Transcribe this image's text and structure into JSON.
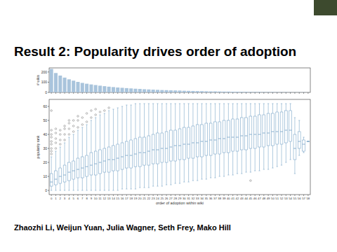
{
  "slide": {
    "title": "Result 2: Popularity drives order of adoption",
    "authors": "Zhaozhi Li, Weijun Yuan, Julia Wagner, Seth Frey, Mako Hill"
  },
  "chart_data": [
    {
      "type": "bar",
      "y_label": "# wikis",
      "color": "#a9c4dc",
      "tick_labels": "y",
      "categories": [
        "0",
        "1",
        "2",
        "3",
        "4",
        "5",
        "6",
        "7",
        "8",
        "9",
        "10",
        "11",
        "12",
        "13",
        "14",
        "15",
        "16",
        "17",
        "18",
        "19",
        "20",
        "21",
        "22",
        "23",
        "24",
        "25",
        "26",
        "27",
        "28",
        "29",
        "30",
        "31",
        "32",
        "33",
        "34",
        "35",
        "36",
        "37",
        "38",
        "39",
        "40",
        "41",
        "42",
        "43",
        "44",
        "45",
        "46",
        "47",
        "48",
        "49",
        "50",
        "51",
        "52",
        "53",
        "54",
        "55",
        "56",
        "57",
        "58"
      ],
      "values": [
        230,
        190,
        165,
        145,
        128,
        115,
        103,
        93,
        85,
        78,
        72,
        66,
        61,
        56,
        52,
        48,
        45,
        42,
        39,
        36,
        34,
        31,
        29,
        27,
        25,
        23,
        22,
        20,
        19,
        18,
        16,
        15,
        14,
        13,
        12,
        11,
        10,
        10,
        9,
        8,
        8,
        7,
        7,
        6,
        6,
        5,
        5,
        5,
        4,
        4,
        4,
        3,
        3,
        3,
        2,
        2,
        2,
        2,
        1
      ],
      "ylim": [
        0,
        240
      ],
      "yticks": [
        0,
        100,
        200
      ]
    },
    {
      "type": "box",
      "x_label": "order of adoption within wiki",
      "y_label": "popularity rank",
      "color": "#7aa6c8",
      "categories": [
        "0",
        "1",
        "2",
        "3",
        "4",
        "5",
        "6",
        "7",
        "8",
        "9",
        "10",
        "11",
        "12",
        "13",
        "14",
        "15",
        "16",
        "17",
        "18",
        "19",
        "20",
        "21",
        "22",
        "23",
        "24",
        "25",
        "26",
        "27",
        "28",
        "29",
        "30",
        "31",
        "32",
        "33",
        "34",
        "35",
        "36",
        "37",
        "38",
        "39",
        "40",
        "41",
        "42",
        "43",
        "44",
        "45",
        "46",
        "47",
        "48",
        "49",
        "50",
        "51",
        "52",
        "53",
        "54",
        "55",
        "56",
        "57",
        "58"
      ],
      "whisker_low": [
        0,
        0,
        0,
        0,
        0,
        0,
        0,
        0,
        0,
        0,
        0,
        0,
        0,
        0,
        0,
        0,
        1,
        1,
        1,
        1,
        2,
        2,
        2,
        3,
        3,
        3,
        4,
        4,
        5,
        5,
        6,
        6,
        7,
        7,
        8,
        8,
        9,
        9,
        10,
        10,
        11,
        11,
        12,
        12,
        13,
        13,
        14,
        14,
        15,
        15,
        16,
        17,
        18,
        20,
        22,
        12,
        25,
        27,
        35
      ],
      "q1": [
        3,
        4,
        5,
        6,
        7,
        8,
        9,
        9,
        10,
        11,
        11,
        12,
        13,
        13,
        14,
        14,
        15,
        16,
        16,
        17,
        17,
        18,
        18,
        19,
        19,
        20,
        20,
        21,
        21,
        22,
        22,
        23,
        23,
        24,
        24,
        25,
        25,
        26,
        26,
        27,
        27,
        28,
        28,
        29,
        29,
        30,
        30,
        31,
        31,
        32,
        32,
        33,
        33,
        34,
        35,
        22,
        30,
        28,
        35
      ],
      "median": [
        6,
        8,
        10,
        11,
        13,
        14,
        15,
        16,
        17,
        18,
        19,
        20,
        21,
        22,
        22,
        23,
        24,
        25,
        25,
        26,
        27,
        27,
        28,
        29,
        29,
        30,
        30,
        31,
        32,
        32,
        33,
        33,
        34,
        34,
        35,
        35,
        36,
        36,
        37,
        37,
        38,
        38,
        38,
        39,
        39,
        40,
        40,
        40,
        41,
        41,
        42,
        42,
        42,
        43,
        43,
        30,
        35,
        33,
        35
      ],
      "q3": [
        12,
        14,
        16,
        18,
        20,
        21,
        23,
        24,
        25,
        27,
        28,
        29,
        30,
        31,
        32,
        33,
        34,
        35,
        36,
        37,
        38,
        38,
        39,
        40,
        41,
        41,
        42,
        43,
        43,
        44,
        45,
        45,
        46,
        47,
        47,
        48,
        48,
        49,
        49,
        50,
        50,
        51,
        51,
        52,
        52,
        53,
        53,
        54,
        54,
        55,
        55,
        56,
        56,
        57,
        57,
        40,
        42,
        36,
        35
      ],
      "whisker_high": [
        24,
        28,
        31,
        34,
        38,
        40,
        43,
        45,
        47,
        50,
        52,
        54,
        55,
        57,
        58,
        59,
        60,
        61,
        61,
        62,
        62,
        62,
        62,
        62,
        62,
        62,
        62,
        62,
        62,
        62,
        62,
        62,
        62,
        62,
        62,
        62,
        62,
        62,
        62,
        62,
        62,
        62,
        62,
        62,
        62,
        62,
        62,
        62,
        62,
        62,
        62,
        62,
        62,
        62,
        62,
        52,
        50,
        38,
        35
      ],
      "outliers": [
        [
          26,
          28,
          30,
          33,
          35,
          38,
          40,
          43,
          57
        ],
        [
          30,
          34,
          37,
          41,
          44
        ],
        [
          33,
          36,
          40,
          43
        ],
        [
          36,
          40,
          44,
          46
        ],
        [
          40,
          44,
          48,
          50
        ],
        [
          42,
          46,
          50
        ],
        [
          45,
          50,
          53
        ],
        [
          47,
          52
        ],
        [
          49,
          55
        ],
        [
          52,
          57
        ],
        [
          54,
          58
        ],
        [
          56
        ],
        [
          57
        ],
        [
          59
        ],
        [],
        [],
        [],
        [],
        [],
        [],
        [],
        [],
        [],
        [],
        [],
        [],
        [],
        [],
        [],
        [],
        [],
        [],
        [],
        [],
        [],
        [],
        [],
        [],
        [],
        [],
        [],
        [],
        [],
        [],
        [],
        [
          7
        ],
        [],
        [],
        [],
        [],
        [],
        [],
        [],
        [],
        [],
        [],
        [],
        [],
        []
      ],
      "ylim": [
        -3,
        65
      ],
      "yticks": [
        0,
        10,
        20,
        30,
        40,
        50,
        60
      ]
    }
  ]
}
